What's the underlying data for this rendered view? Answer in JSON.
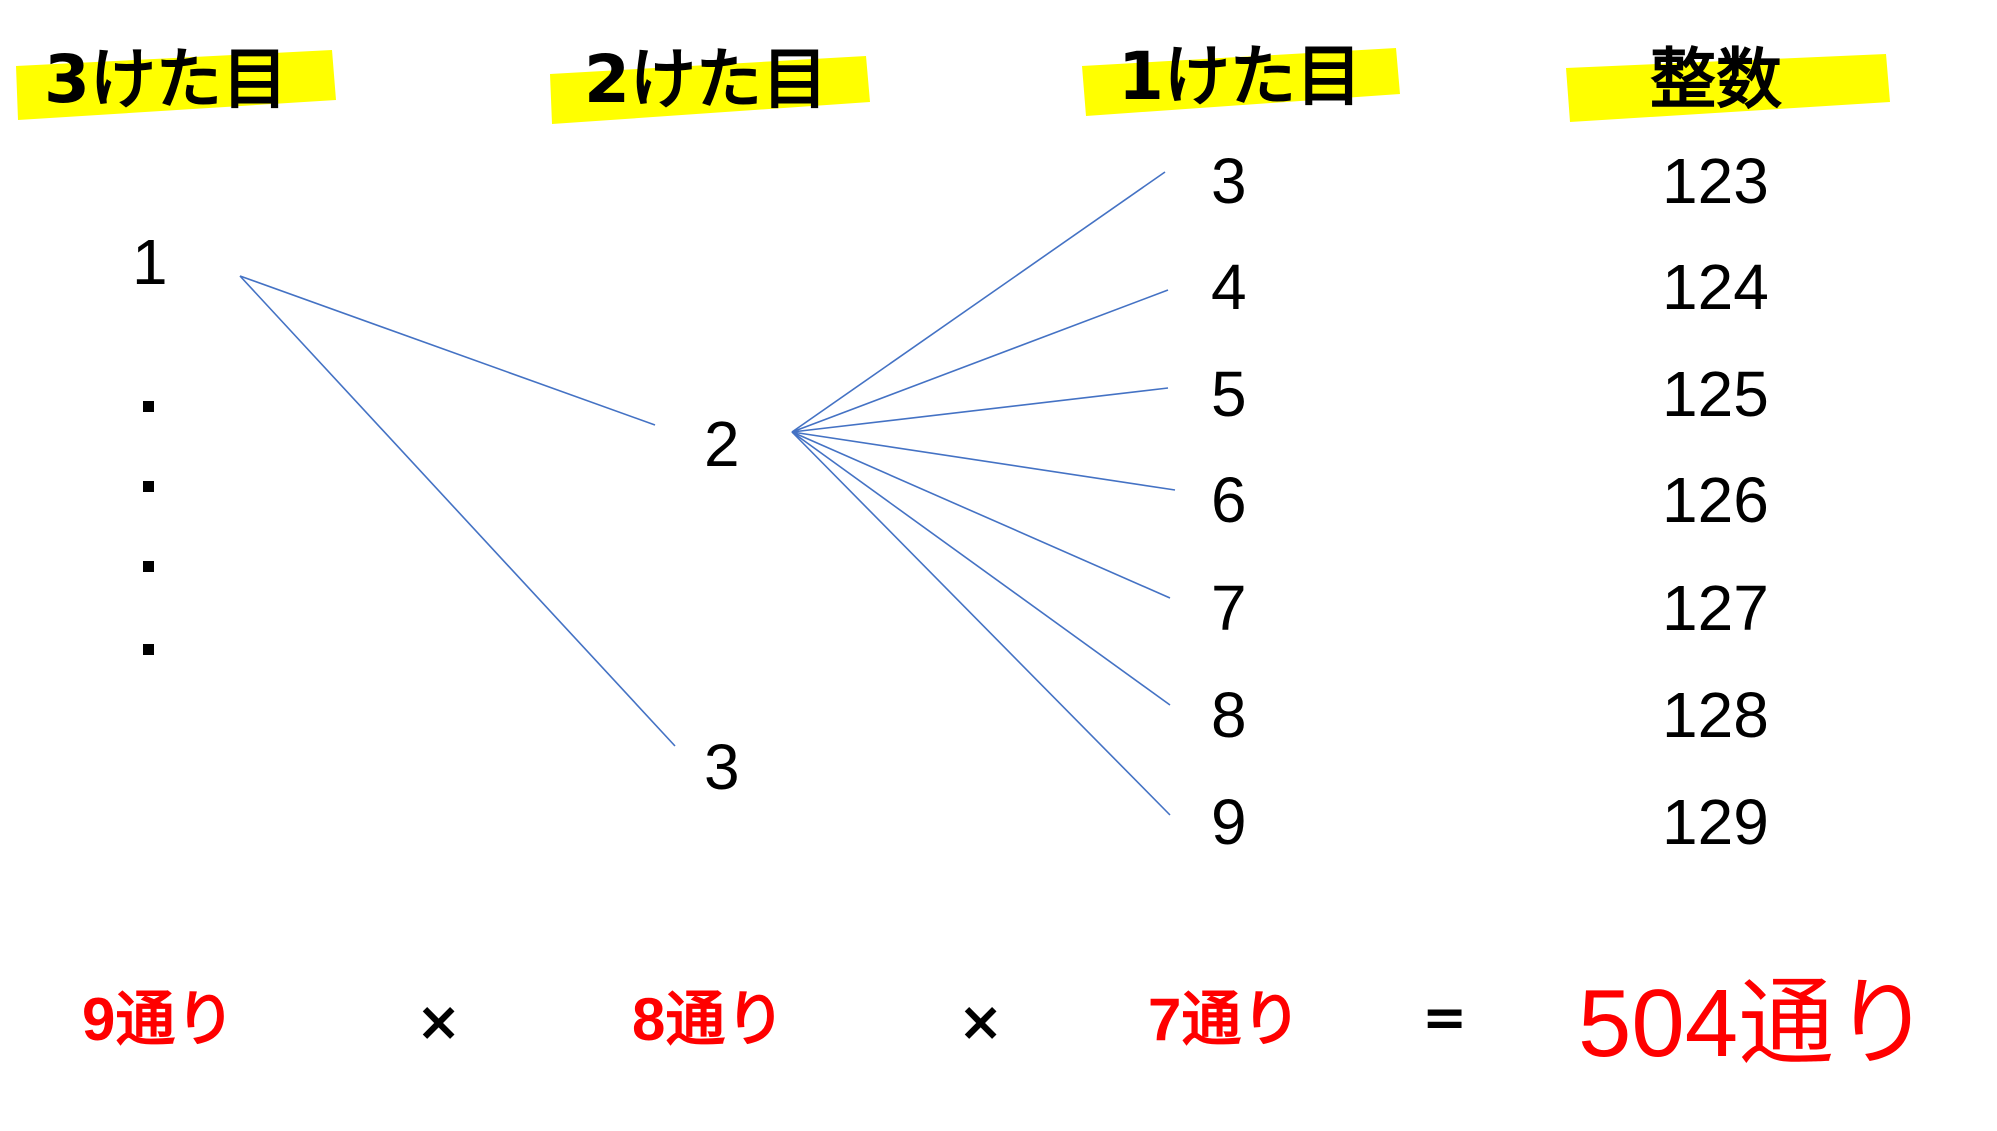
{
  "colors": {
    "highlight": "#ffff00",
    "line": "#4472c4",
    "text": "#000000",
    "result": "#ff0000"
  },
  "headers": {
    "digit3": "3けた目",
    "digit2": "2けた目",
    "digit1": "1けた目",
    "integer": "整数"
  },
  "tree": {
    "hundreds": [
      "1"
    ],
    "hundreds_ellipsis": "・・・・",
    "tens": [
      "2",
      "3"
    ],
    "ones": [
      "3",
      "4",
      "5",
      "6",
      "7",
      "8",
      "9"
    ],
    "integers": [
      "123",
      "124",
      "125",
      "126",
      "127",
      "128",
      "129"
    ]
  },
  "formula": {
    "first": "9通り",
    "op1": "×",
    "second": "8通り",
    "op2": "×",
    "third": "7通り",
    "equals": "=",
    "total": "504通り"
  }
}
